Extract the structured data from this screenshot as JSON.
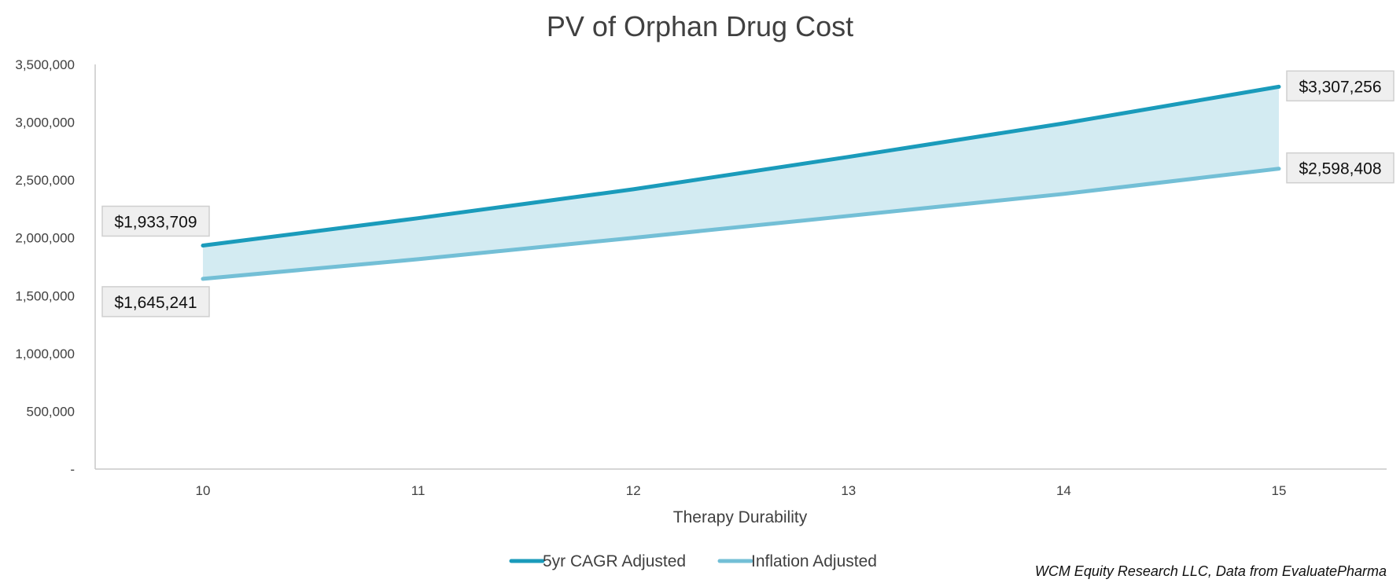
{
  "chart_data": {
    "type": "line",
    "title": "PV of Orphan Drug Cost",
    "xlabel": "Therapy Durability",
    "ylabel": "",
    "categories": [
      "10",
      "11",
      "12",
      "13",
      "14",
      "15"
    ],
    "x": [
      10,
      11,
      12,
      13,
      14,
      15
    ],
    "ylim": [
      0,
      3500000
    ],
    "yticks": [
      0,
      500000,
      1000000,
      1500000,
      2000000,
      2500000,
      3000000,
      3500000
    ],
    "ytick_labels": [
      "-",
      "500,000",
      "1,000,000",
      "1,500,000",
      "2,000,000",
      "2,500,000",
      "3,000,000",
      "3,500,000"
    ],
    "grid": false,
    "legend_position": "bottom",
    "series": [
      {
        "name": "5yr CAGR Adjusted",
        "color": "#1a9bbb",
        "values": [
          1933709,
          2170000,
          2420000,
          2700000,
          2990000,
          3307256
        ]
      },
      {
        "name": "Inflation Adjusted",
        "color": "#73bfd6",
        "values": [
          1645241,
          1815000,
          2000000,
          2190000,
          2380000,
          2598408
        ]
      }
    ],
    "band_fill_color": "#d3ebf2",
    "annotations": [
      {
        "text": "$1,933,709",
        "series": 0,
        "x": 10,
        "placement": "above-left"
      },
      {
        "text": "$1,645,241",
        "series": 1,
        "x": 10,
        "placement": "below-left"
      },
      {
        "text": "$3,307,256",
        "series": 0,
        "x": 15,
        "placement": "right"
      },
      {
        "text": "$2,598,408",
        "series": 1,
        "x": 15,
        "placement": "right"
      }
    ],
    "source_note": "WCM Equity Research LLC, Data from EvaluatePharma"
  }
}
